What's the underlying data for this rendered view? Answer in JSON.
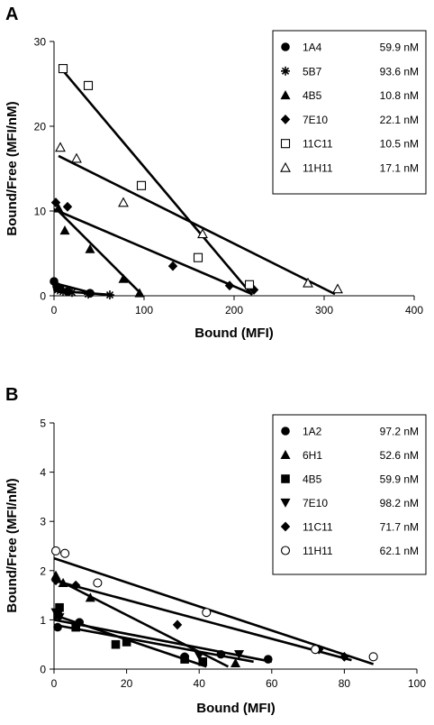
{
  "chart_data": [
    {
      "panel": "A",
      "type": "scatter",
      "xlabel": "Bound (MFI)",
      "ylabel": "Bound/Free (MFI/nM)",
      "xlim": [
        0,
        400
      ],
      "ylim": [
        0,
        30
      ],
      "xticks": [
        "0",
        "100",
        "200",
        "300",
        "400"
      ],
      "yticks": [
        "0",
        "10",
        "20",
        "30"
      ],
      "legend_position": "top-right",
      "series": [
        {
          "name": "1A4",
          "kd": "59.9 nM",
          "marker": "circle-filled",
          "x": [
            0,
            3,
            7,
            15,
            40
          ],
          "y": [
            1.7,
            1.1,
            0.8,
            0.5,
            0.3
          ],
          "fit": [
            [
              0,
              1.5
            ],
            [
              45,
              0.25
            ]
          ]
        },
        {
          "name": "5B7",
          "kd": "93.6 nM",
          "marker": "asterisk",
          "x": [
            4,
            10,
            20,
            38,
            62
          ],
          "y": [
            0.7,
            0.5,
            0.4,
            0.2,
            0.1
          ],
          "fit": [
            [
              0,
              0.6
            ],
            [
              65,
              0.1
            ]
          ]
        },
        {
          "name": "4B5",
          "kd": "10.8 nM",
          "marker": "triangle-filled",
          "x": [
            5,
            12,
            40,
            77,
            95
          ],
          "y": [
            10.3,
            7.7,
            5.5,
            2.0,
            0.3
          ],
          "fit": [
            [
              2,
              10.3
            ],
            [
              98,
              0.1
            ]
          ]
        },
        {
          "name": "7E10",
          "kd": "22.1 nM",
          "marker": "diamond-filled",
          "x": [
            2,
            15,
            132,
            195,
            222
          ],
          "y": [
            11.0,
            10.5,
            3.5,
            1.2,
            0.7
          ],
          "fit": [
            [
              0,
              10.2
            ],
            [
              220,
              0.2
            ]
          ]
        },
        {
          "name": "11C11",
          "kd": "10.5 nM",
          "marker": "square-open",
          "x": [
            10,
            38,
            97,
            160,
            217
          ],
          "y": [
            26.8,
            24.8,
            13.0,
            4.5,
            1.3
          ],
          "fit": [
            [
              8,
              26.8
            ],
            [
              220,
              0.1
            ]
          ]
        },
        {
          "name": "11H11",
          "kd": "17.1 nM",
          "marker": "triangle-open",
          "x": [
            7,
            25,
            77,
            165,
            282,
            315
          ],
          "y": [
            17.5,
            16.2,
            11.0,
            7.3,
            1.5,
            0.8
          ],
          "fit": [
            [
              5,
              16.5
            ],
            [
              312,
              0.2
            ]
          ]
        }
      ]
    },
    {
      "panel": "B",
      "type": "scatter",
      "xlabel": "Bound (MFI)",
      "ylabel": "Bound/Free (MFI/nM)",
      "xlim": [
        0,
        100
      ],
      "ylim": [
        0,
        5
      ],
      "xticks": [
        "0",
        "20",
        "40",
        "60",
        "80",
        "100"
      ],
      "yticks": [
        "0",
        "1",
        "2",
        "3",
        "4",
        "5"
      ],
      "legend_position": "top-right",
      "series": [
        {
          "name": "1A2",
          "kd": "97.2 nM",
          "marker": "circle-filled",
          "x": [
            1,
            7,
            36,
            46,
            59
          ],
          "y": [
            0.85,
            0.95,
            0.25,
            0.3,
            0.2
          ],
          "fit": [
            [
              0,
              1.0
            ],
            [
              60,
              0.15
            ]
          ]
        },
        {
          "name": "6H1",
          "kd": "52.6 nM",
          "marker": "triangle-filled",
          "x": [
            0.5,
            2.5,
            10,
            50
          ],
          "y": [
            1.9,
            1.75,
            1.45,
            0.12
          ],
          "fit": [
            [
              0,
              1.85
            ],
            [
              48,
              0.05
            ]
          ]
        },
        {
          "name": "4B5",
          "kd": "59.9 nM",
          "marker": "square-filled",
          "x": [
            1,
            1.5,
            6,
            17,
            20,
            36,
            41
          ],
          "y": [
            1.1,
            1.25,
            0.85,
            0.5,
            0.55,
            0.2,
            0.15
          ],
          "fit": [
            [
              0,
              1.1
            ],
            [
              42,
              0.05
            ]
          ]
        },
        {
          "name": "7E10",
          "kd": "98.2 nM",
          "marker": "triangle-down-filled",
          "x": [
            0.5,
            1.5,
            40,
            51
          ],
          "y": [
            1.15,
            1.05,
            0.27,
            0.3
          ],
          "fit": [
            [
              0,
              0.9
            ],
            [
              55,
              0.15
            ]
          ]
        },
        {
          "name": "11C11",
          "kd": "71.7 nM",
          "marker": "diamond-filled",
          "x": [
            0.5,
            6,
            34,
            73,
            80
          ],
          "y": [
            1.8,
            1.7,
            0.9,
            0.4,
            0.25
          ],
          "fit": [
            [
              0,
              1.8
            ],
            [
              82,
              0.18
            ]
          ]
        },
        {
          "name": "11H11",
          "kd": "62.1 nM",
          "marker": "circle-open",
          "x": [
            0.5,
            3,
            12,
            42,
            72,
            88
          ],
          "y": [
            2.4,
            2.35,
            1.75,
            1.15,
            0.4,
            0.25
          ],
          "fit": [
            [
              0,
              2.25
            ],
            [
              88,
              0.1
            ]
          ]
        }
      ]
    }
  ]
}
